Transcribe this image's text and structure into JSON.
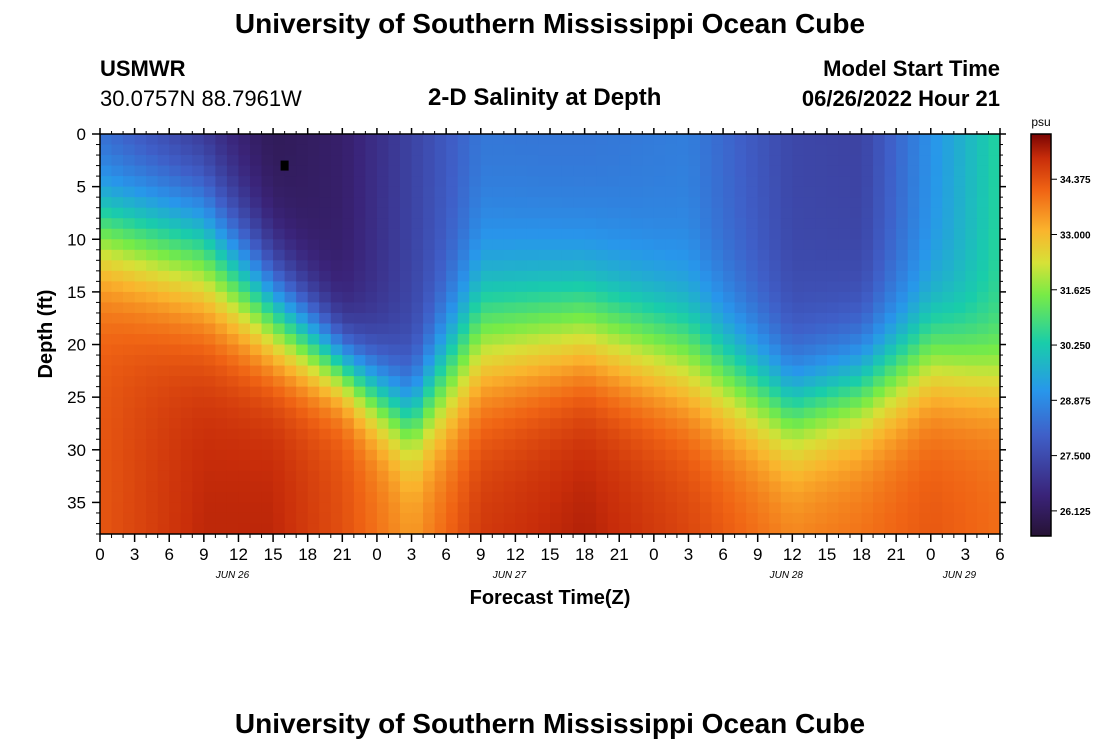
{
  "header": {
    "title": "University of Southern Mississippi Ocean Cube",
    "station_id": "USMWR",
    "coordinates": "30.0757N  88.7961W",
    "plot_title": "2-D Salinity at Depth",
    "model_start_label": "Model Start Time",
    "model_start_value": "06/26/2022 Hour 21"
  },
  "footer": {
    "title": "University of Southern Mississippi Ocean Cube"
  },
  "chart_data": {
    "type": "heatmap",
    "title": "2-D Salinity at Depth",
    "xlabel": "Forecast Time(Z)",
    "ylabel": "Depth (ft)",
    "colorbar_unit": "psu",
    "colorbar_ticks": [
      "26.125",
      "27.500",
      "28.875",
      "30.250",
      "31.625",
      "33.000",
      "34.375"
    ],
    "colorbar_range": [
      25.5,
      35.5
    ],
    "y_ticks": [
      "0",
      "5",
      "10",
      "15",
      "20",
      "25",
      "30",
      "35"
    ],
    "ylim": [
      0,
      38
    ],
    "x_tick_labels": [
      "0",
      "3",
      "6",
      "9",
      "12",
      "15",
      "18",
      "21",
      "0",
      "3",
      "6",
      "9",
      "12",
      "15",
      "18",
      "21",
      "0",
      "3",
      "6",
      "9",
      "12",
      "15",
      "18",
      "21",
      "0",
      "3",
      "6"
    ],
    "date_labels": [
      {
        "label": "JUN 26",
        "hour_index": 4
      },
      {
        "label": "JUN 27",
        "hour_index": 12
      },
      {
        "label": "JUN 28",
        "hour_index": 20
      },
      {
        "label": "JUN 29",
        "hour_index": 25
      }
    ],
    "xlim_hours": [
      0,
      78
    ],
    "grid": false,
    "surface_profile_hours": [
      0,
      9,
      15,
      21,
      27,
      33,
      42,
      51,
      60,
      66,
      72,
      78
    ],
    "surface_salinity": [
      28.0,
      26.5,
      26.0,
      26.3,
      27.3,
      28.4,
      28.4,
      28.6,
      27.4,
      27.3,
      29.0,
      30.5
    ],
    "bottom_salinity": [
      34.3,
      35.0,
      35.0,
      34.4,
      33.5,
      34.8,
      35.1,
      34.6,
      33.8,
      34.0,
      34.3,
      34.0
    ],
    "halocline_depth_ft": [
      9,
      11,
      17,
      22,
      27,
      19,
      18,
      21,
      26,
      24,
      21,
      23
    ],
    "halocline_thickness_ft": [
      6,
      8,
      6,
      4,
      5,
      8,
      7,
      7,
      6,
      6,
      6,
      5
    ],
    "marker": {
      "hour": 16,
      "depth_ft": 3
    }
  }
}
